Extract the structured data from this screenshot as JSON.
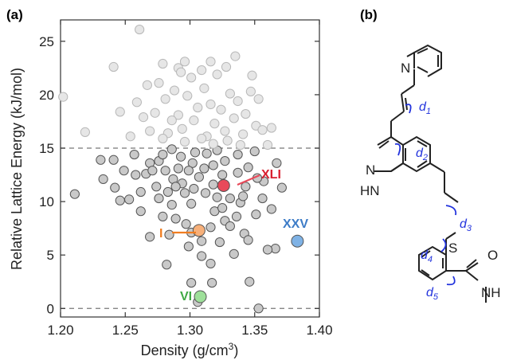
{
  "panels": {
    "a": "(a)",
    "b": "(b)"
  },
  "chart_data": {
    "type": "scatter",
    "xlabel": "Density (g/cm",
    "xlabel_sup": "3",
    "xlabel_end": ")",
    "ylabel": "Relative Lattice Energy (kJ/mol)",
    "xlim": [
      1.2,
      1.4
    ],
    "ylim": [
      -0.8,
      27
    ],
    "xticks": [
      "1.20",
      "1.25",
      "1.30",
      "1.35",
      "1.40"
    ],
    "yticks": [
      "0",
      "5",
      "10",
      "15",
      "20",
      "25"
    ],
    "reference_lines": [
      15,
      0
    ],
    "point_colors": {
      "below_15": "#c9c9c9",
      "above_15": "#e6e6e6",
      "edge_below": "#555555",
      "edge_above": "#b8b8b8"
    },
    "highlighted": [
      {
        "label": "XLI",
        "x": 1.326,
        "y": 11.5,
        "color": "#e84a5a",
        "text_color": "#d92030"
      },
      {
        "label": "I",
        "x": 1.307,
        "y": 7.3,
        "color": "#f7b07a",
        "text_color": "#f07d20"
      },
      {
        "label": "XXV",
        "x": 1.383,
        "y": 6.3,
        "color": "#7fb2e5",
        "text_color": "#3d7cc7"
      },
      {
        "label": "VI",
        "x": 1.308,
        "y": 1.1,
        "color": "#9ee09a",
        "text_color": "#3fa944"
      }
    ],
    "series": [
      {
        "points": [
          [
            1.202,
            19.8
          ],
          [
            1.211,
            10.7
          ],
          [
            1.219,
            16.5
          ],
          [
            1.233,
            12.1
          ],
          [
            1.241,
            22.6
          ],
          [
            1.246,
            18.4
          ],
          [
            1.261,
            26.1
          ],
          [
            1.279,
            22.9
          ],
          [
            1.291,
            22.5
          ],
          [
            1.335,
            23.6
          ],
          [
            1.348,
            21.8
          ],
          [
            1.363,
            16.9
          ],
          [
            1.36,
            15.3
          ],
          [
            1.353,
            0.0
          ],
          [
            1.346,
            2.5
          ],
          [
            1.317,
            2.4
          ],
          [
            1.301,
            2.4
          ],
          [
            1.306,
            0.6
          ],
          [
            1.279,
            8.6
          ],
          [
            1.276,
            13.8
          ],
          [
            1.269,
            6.7
          ],
          [
            1.282,
            4.1
          ],
          [
            1.316,
            4.2
          ],
          [
            1.342,
            7.0
          ],
          [
            1.371,
            11.3
          ],
          [
            1.366,
            5.6
          ],
          [
            1.36,
            5.5
          ],
          [
            1.363,
            9.3
          ],
          [
            1.241,
            13.9
          ],
          [
            1.249,
            12.9
          ],
          [
            1.253,
            10.2
          ],
          [
            1.231,
            13.9
          ],
          [
            1.313,
            14.5
          ],
          [
            1.325,
            12.5
          ],
          [
            1.337,
            14.4
          ],
          [
            1.294,
            11.7
          ],
          [
            1.301,
            9.8
          ],
          [
            1.283,
            10.9
          ],
          [
            1.307,
            12.3
          ],
          [
            1.319,
            9.1
          ],
          [
            1.339,
            9.9
          ],
          [
            1.327,
            8.2
          ],
          [
            1.309,
            6.3
          ],
          [
            1.297,
            7.9
          ],
          [
            1.287,
            12.1
          ],
          [
            1.321,
            14.8
          ],
          [
            1.345,
            13.2
          ],
          [
            1.357,
            11.9
          ],
          [
            1.351,
            8.8
          ],
          [
            1.279,
            14.4
          ],
          [
            1.262,
            9.1
          ],
          [
            1.266,
            12.6
          ],
          [
            1.293,
            14.2
          ],
          [
            1.312,
            10.8
          ],
          [
            1.274,
            11.4
          ],
          [
            1.331,
            10.3
          ],
          [
            1.302,
            13.6
          ],
          [
            1.286,
            9.7
          ],
          [
            1.316,
            7.6
          ],
          [
            1.323,
            6.2
          ],
          [
            1.345,
            6.4
          ],
          [
            1.334,
            5.1
          ],
          [
            1.299,
            5.8
          ],
          [
            1.309,
            4.9
          ],
          [
            1.291,
            13.1
          ],
          [
            1.304,
            14.6
          ],
          [
            1.337,
            12.7
          ],
          [
            1.281,
            12.9
          ],
          [
            1.352,
            12.2
          ],
          [
            1.269,
            13.6
          ],
          [
            1.284,
            6.9
          ],
          [
            1.331,
            7.7
          ],
          [
            1.356,
            10.3
          ],
          [
            1.367,
            13.6
          ],
          [
            1.242,
            11.3
          ],
          [
            1.257,
            14.4
          ],
          [
            1.246,
            10.1
          ],
          [
            1.327,
            13.8
          ],
          [
            1.311,
            13.1
          ],
          [
            1.296,
            10.8
          ],
          [
            1.318,
            11.6
          ],
          [
            1.289,
            8.4
          ],
          [
            1.303,
            11.2
          ],
          [
            1.343,
            11.4
          ],
          [
            1.336,
            8.6
          ],
          [
            1.276,
            10.3
          ],
          [
            1.258,
            12.5
          ],
          [
            1.271,
            12.9
          ],
          [
            1.301,
            7.1
          ],
          [
            1.299,
            12.9
          ],
          [
            1.321,
            10.4
          ],
          [
            1.286,
            14.9
          ],
          [
            1.318,
            13.4
          ],
          [
            1.35,
            14.7
          ],
          [
            1.341,
            10.5
          ],
          [
            1.262,
            10.9
          ],
          [
            1.325,
            9.4
          ],
          [
            1.289,
            11.4
          ],
          [
            1.259,
            19.3
          ],
          [
            1.267,
            20.9
          ],
          [
            1.273,
            18.3
          ],
          [
            1.276,
            21.1
          ],
          [
            1.281,
            19.6
          ],
          [
            1.283,
            16.4
          ],
          [
            1.288,
            20.4
          ],
          [
            1.291,
            18.1
          ],
          [
            1.294,
            16.8
          ],
          [
            1.298,
            19.9
          ],
          [
            1.301,
            21.6
          ],
          [
            1.303,
            17.6
          ],
          [
            1.306,
            18.8
          ],
          [
            1.311,
            20.6
          ],
          [
            1.313,
            16.1
          ],
          [
            1.316,
            19.1
          ],
          [
            1.319,
            17.3
          ],
          [
            1.321,
            21.9
          ],
          [
            1.324,
            18.6
          ],
          [
            1.327,
            16.6
          ],
          [
            1.331,
            20.1
          ],
          [
            1.334,
            17.8
          ],
          [
            1.337,
            19.4
          ],
          [
            1.341,
            16.3
          ],
          [
            1.343,
            18.2
          ],
          [
            1.347,
            20.3
          ],
          [
            1.351,
            17.1
          ],
          [
            1.353,
            19.6
          ],
          [
            1.356,
            16.7
          ],
          [
            1.286,
            17.6
          ],
          [
            1.296,
            15.6
          ],
          [
            1.309,
            15.9
          ],
          [
            1.318,
            15.4
          ],
          [
            1.329,
            15.7
          ],
          [
            1.339,
            15.3
          ],
          [
            1.279,
            15.9
          ],
          [
            1.269,
            16.6
          ],
          [
            1.264,
            17.9
          ],
          [
            1.254,
            16.1
          ],
          [
            1.293,
            22.1
          ],
          [
            1.309,
            22.3
          ],
          [
            1.296,
            23.1
          ],
          [
            1.328,
            22.6
          ],
          [
            1.316,
            23.1
          ]
        ]
      }
    ]
  },
  "molecule": {
    "atoms": {
      "n_pyridine": "N",
      "n_pyrazole": "N",
      "nh_pyrazole": "HN",
      "s": "S",
      "o": "O",
      "nh_amide": "NH"
    },
    "torsions": [
      {
        "id": "d1",
        "letter": "d",
        "sub": "1"
      },
      {
        "id": "d2",
        "letter": "d",
        "sub": "2"
      },
      {
        "id": "d3",
        "letter": "d",
        "sub": "3"
      },
      {
        "id": "d4",
        "letter": "d",
        "sub": "4"
      },
      {
        "id": "d5",
        "letter": "d",
        "sub": "5"
      }
    ],
    "torsion_color": "#2233dd"
  }
}
